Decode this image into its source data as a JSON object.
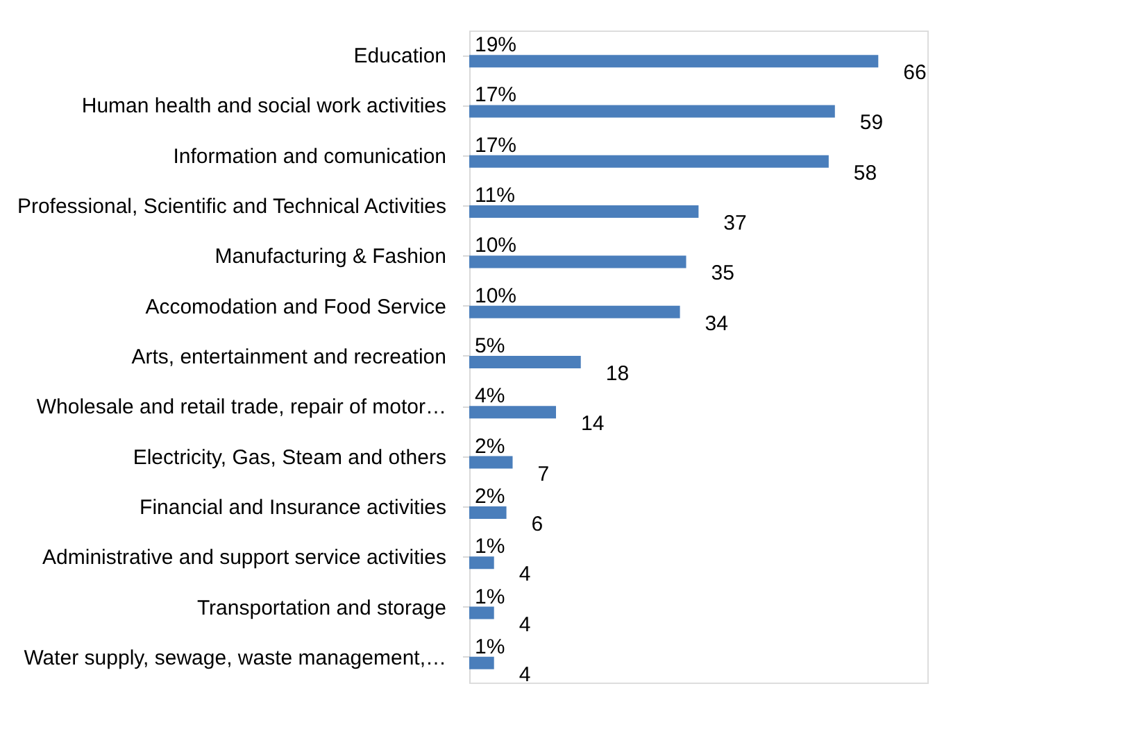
{
  "chart_data": {
    "type": "bar",
    "orientation": "horizontal",
    "data_labels": true,
    "color": "#4a7ebb",
    "categories": [
      "Education",
      "Human health and social work activities",
      "Information and comunication",
      "Professional, Scientific and Technical Activities",
      "Manufacturing & Fashion",
      "Accomodation and Food Service",
      "Arts, entertainment and recreation",
      "Wholesale and retail trade, repair of motor…",
      "Electricity, Gas, Steam and others",
      "Financial and Insurance activities",
      "Administrative and support service activities",
      "Transportation and storage",
      "Water supply, sewage, waste management,…"
    ],
    "values": [
      66,
      59,
      58,
      37,
      35,
      34,
      18,
      14,
      7,
      6,
      4,
      4,
      4
    ],
    "annotations": [
      "19%",
      "17%",
      "17%",
      "11%",
      "10%",
      "10%",
      "5%",
      "4%",
      "2%",
      "2%",
      "1%",
      "1%",
      "1%"
    ],
    "grid": false
  }
}
